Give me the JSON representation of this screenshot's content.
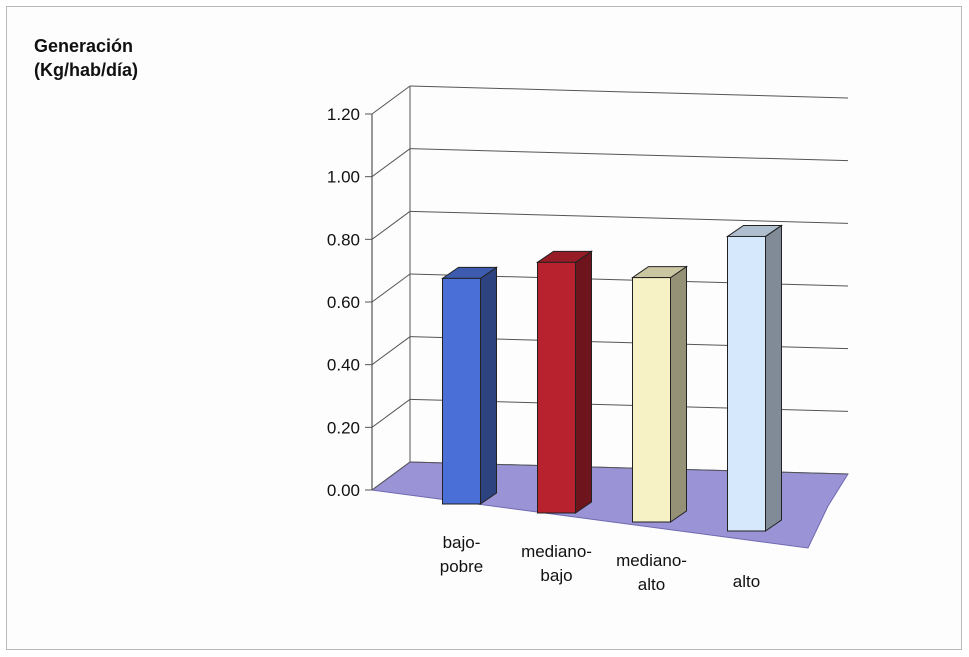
{
  "chart_data": {
    "type": "bar",
    "title": "",
    "ylabel_lines": [
      "Generación",
      "(Kg/hab/día)"
    ],
    "xlabel": "",
    "categories": [
      [
        "bajo-",
        "pobre"
      ],
      [
        "mediano-",
        "bajo"
      ],
      [
        "mediano-",
        "alto"
      ],
      [
        "alto"
      ]
    ],
    "values": [
      0.72,
      0.8,
      0.78,
      0.94
    ],
    "ylim": [
      0,
      1.2
    ],
    "yticks": [
      "0.00",
      "0.20",
      "0.40",
      "0.60",
      "0.80",
      "1.00",
      "1.20"
    ],
    "grid": true,
    "three_d": true,
    "colors": {
      "bars": [
        "#4a6fd6",
        "#b8222e",
        "#f7f1c6",
        "#d6e8fb"
      ],
      "floor": "#9a94d6",
      "grid": "#555555"
    }
  }
}
